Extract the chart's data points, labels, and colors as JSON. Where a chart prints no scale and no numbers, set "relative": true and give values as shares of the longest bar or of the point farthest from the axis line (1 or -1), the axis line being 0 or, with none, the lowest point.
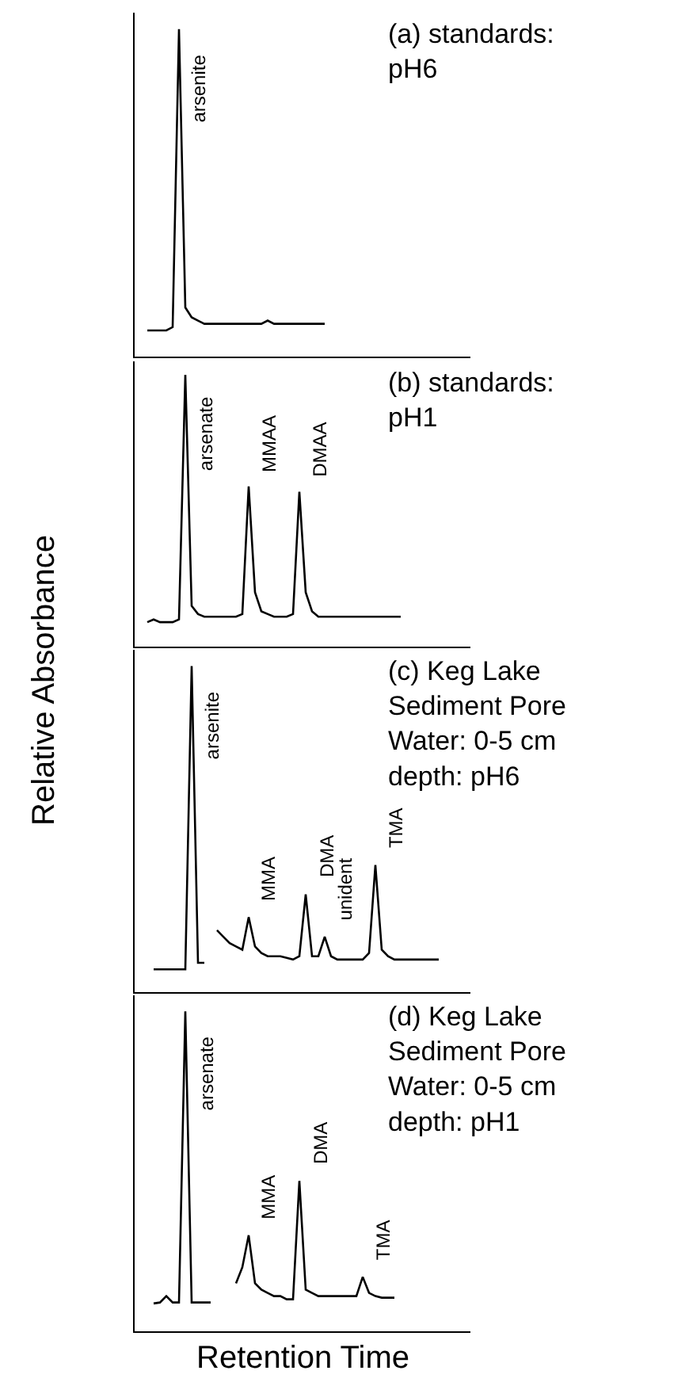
{
  "chart_data": [
    {
      "type": "line",
      "relative": true,
      "title": "(a) standards:\npH6",
      "color": "#000000",
      "annotations": [
        "arsenite"
      ],
      "categories": [
        null,
        null,
        null,
        null,
        null,
        null,
        null,
        null,
        null,
        null,
        null,
        null,
        null,
        null,
        null,
        null,
        null,
        null,
        null,
        null,
        null,
        null,
        null,
        null,
        null,
        null,
        null,
        null,
        null,
        null,
        null,
        null,
        null,
        null,
        null,
        null,
        null,
        null,
        null,
        null,
        null,
        null,
        null,
        null,
        null,
        null,
        null,
        null,
        null,
        null,
        null,
        null,
        null,
        null
      ],
      "values": [
        null,
        null,
        0.08,
        0.08,
        0.08,
        0.08,
        0.09,
        1.0,
        0.15,
        0.12,
        0.11,
        0.1,
        0.1,
        0.1,
        0.1,
        0.1,
        0.1,
        0.1,
        0.1,
        0.1,
        0.1,
        0.11,
        0.1,
        0.1,
        0.1,
        0.1,
        0.1,
        0.1,
        0.1,
        0.1,
        0.1,
        null,
        null,
        null,
        null,
        null,
        null,
        null,
        null,
        null,
        null,
        null,
        null,
        null,
        null,
        null,
        null,
        null,
        null,
        null,
        null,
        null,
        null,
        null
      ]
    },
    {
      "type": "line",
      "relative": true,
      "title": "(b) standards:\npH1",
      "ylabel": "Relative Absorbance",
      "color": "#000000",
      "annotations": [
        "arsenate",
        "MMAA",
        "DMAA"
      ],
      "categories": [
        null,
        null,
        null,
        null,
        null,
        null,
        null,
        null,
        null,
        null,
        null,
        null,
        null,
        null,
        null,
        null,
        null,
        null,
        null,
        null,
        null,
        null,
        null,
        null,
        null,
        null,
        null,
        null,
        null,
        null,
        null,
        null,
        null,
        null,
        null,
        null,
        null,
        null,
        null,
        null,
        null,
        null,
        null,
        null,
        null,
        null,
        null,
        null,
        null,
        null,
        null,
        null,
        null,
        null
      ],
      "values": [
        null,
        null,
        0.09,
        0.1,
        0.09,
        0.09,
        0.09,
        0.1,
        1.0,
        0.15,
        0.12,
        0.11,
        0.11,
        0.11,
        0.11,
        0.11,
        0.11,
        0.12,
        0.59,
        0.2,
        0.13,
        0.12,
        0.11,
        0.11,
        0.11,
        0.12,
        0.57,
        0.2,
        0.13,
        0.11,
        0.11,
        0.11,
        0.11,
        0.11,
        0.11,
        0.11,
        0.11,
        0.11,
        0.11,
        0.11,
        0.11,
        0.11,
        0.11,
        null,
        null,
        null,
        null,
        null,
        null,
        null,
        null,
        null,
        null,
        null
      ]
    },
    {
      "type": "line",
      "relative": true,
      "title": "(c) Keg Lake\nSediment Pore\nWater: 0-5 cm\ndepth: pH6",
      "color": "#000000",
      "annotations": [
        "arsenite",
        "MMA",
        "DMA",
        "unident",
        "TMA"
      ],
      "categories": [
        null,
        null,
        null,
        null,
        null,
        null,
        null,
        null,
        null,
        null,
        null,
        null,
        null,
        null,
        null,
        null,
        null,
        null,
        null,
        null,
        null,
        null,
        null,
        null,
        null,
        null,
        null,
        null,
        null,
        null,
        null,
        null,
        null,
        null,
        null,
        null,
        null,
        null,
        null,
        null,
        null,
        null,
        null,
        null,
        null,
        null,
        null,
        null,
        null,
        null,
        null,
        null,
        null,
        null
      ],
      "values": [
        null,
        null,
        null,
        0.07,
        0.07,
        0.07,
        0.07,
        0.07,
        0.07,
        1.0,
        0.09,
        0.09,
        null,
        0.19,
        0.17,
        0.15,
        0.14,
        0.13,
        0.23,
        0.14,
        0.12,
        0.11,
        0.11,
        0.11,
        0.105,
        0.1,
        0.11,
        0.3,
        0.11,
        0.11,
        0.17,
        0.11,
        0.1,
        0.1,
        0.1,
        0.1,
        0.1,
        0.12,
        0.39,
        0.13,
        0.11,
        0.1,
        0.1,
        0.1,
        0.1,
        0.1,
        0.1,
        0.1,
        0.1,
        null,
        null,
        null,
        null,
        null
      ]
    },
    {
      "type": "line",
      "relative": true,
      "title": "(d) Keg Lake\nSediment Pore\nWater: 0-5 cm\ndepth: pH1",
      "xlabel": "Retention Time",
      "color": "#000000",
      "annotations": [
        "arsenate",
        "MMA",
        "DMA",
        "TMA"
      ],
      "categories": [
        null,
        null,
        null,
        null,
        null,
        null,
        null,
        null,
        null,
        null,
        null,
        null,
        null,
        null,
        null,
        null,
        null,
        null,
        null,
        null,
        null,
        null,
        null,
        null,
        null,
        null,
        null,
        null,
        null,
        null,
        null,
        null,
        null,
        null,
        null,
        null,
        null,
        null,
        null,
        null,
        null,
        null,
        null,
        null,
        null,
        null,
        null,
        null,
        null,
        null,
        null,
        null,
        null,
        null
      ],
      "values": [
        null,
        null,
        null,
        0.087,
        0.09,
        0.11,
        0.09,
        0.09,
        1.0,
        0.09,
        0.09,
        0.09,
        0.09,
        null,
        null,
        null,
        0.15,
        0.2,
        0.3,
        0.15,
        0.13,
        0.12,
        0.11,
        0.11,
        0.1,
        0.1,
        0.47,
        0.13,
        0.12,
        0.11,
        0.11,
        0.11,
        0.11,
        0.11,
        0.11,
        0.11,
        0.17,
        0.12,
        0.11,
        0.105,
        0.105,
        0.105,
        null,
        null,
        null,
        null,
        null,
        null,
        null,
        null,
        null,
        null,
        null,
        null
      ]
    }
  ]
}
